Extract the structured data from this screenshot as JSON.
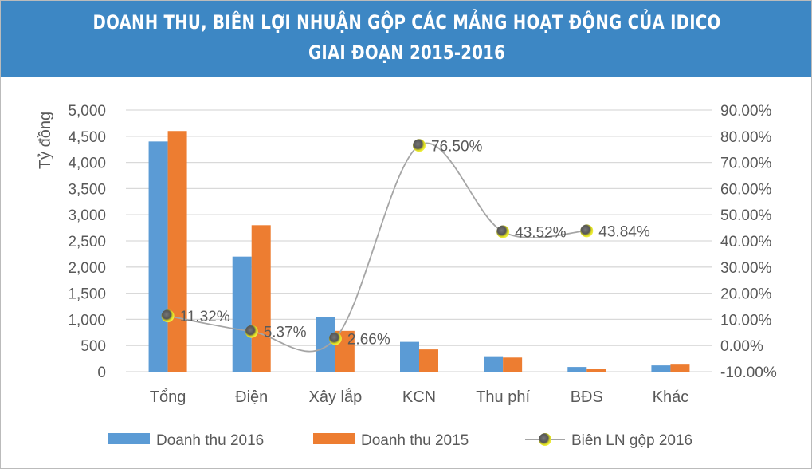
{
  "chart_data": {
    "type": "bar",
    "title": [
      "DOANH THU, BIÊN LỢI NHUẬN GỘP CÁC MẢNG HOẠT ĐỘNG CỦA IDICO",
      "GIAI ĐOẠN 2015-2016"
    ],
    "ylabel": "Tỷ đồng",
    "ylim": [
      0,
      5000
    ],
    "y_ticks": [
      "0",
      "500",
      "1,000",
      "1,500",
      "2,000",
      "2,500",
      "3,000",
      "3,500",
      "4,000",
      "4,500",
      "5,000"
    ],
    "y2lim": [
      -10,
      90
    ],
    "y2_ticks": [
      "-10.00%",
      "0.00%",
      "10.00%",
      "20.00%",
      "30.00%",
      "40.00%",
      "50.00%",
      "60.00%",
      "70.00%",
      "80.00%",
      "90.00%"
    ],
    "categories": [
      "Tổng",
      "Điện",
      "Xây lắp",
      "KCN",
      "Thu phí",
      "BĐS",
      "Khác"
    ],
    "series": [
      {
        "name": "Doanh thu 2016",
        "type": "bar",
        "color": "#5b9bd5",
        "values": [
          4400,
          2200,
          1050,
          570,
          295,
          90,
          120
        ]
      },
      {
        "name": "Doanh thu 2015",
        "type": "bar",
        "color": "#ed7d31",
        "values": [
          4600,
          2800,
          780,
          425,
          270,
          50,
          150
        ]
      },
      {
        "name": "Biên LN gộp 2016",
        "type": "line",
        "axis": "right",
        "color": "#a5a5a5",
        "points": [
          {
            "cat": "Tổng",
            "value": 11.32,
            "label": "11.32%"
          },
          {
            "cat": "Điện",
            "value": 5.37,
            "label": "5.37%"
          },
          {
            "cat": "Xây lắp",
            "value": 2.66,
            "label": "2.66%"
          },
          {
            "cat": "KCN",
            "value": 76.5,
            "label": "76.50%"
          },
          {
            "cat": "Thu phí",
            "value": 43.52,
            "label": "43.52%"
          },
          {
            "cat": "BĐS",
            "value": 43.84,
            "label": "43.84%"
          }
        ]
      }
    ],
    "legend": "bottom",
    "grid": true
  }
}
